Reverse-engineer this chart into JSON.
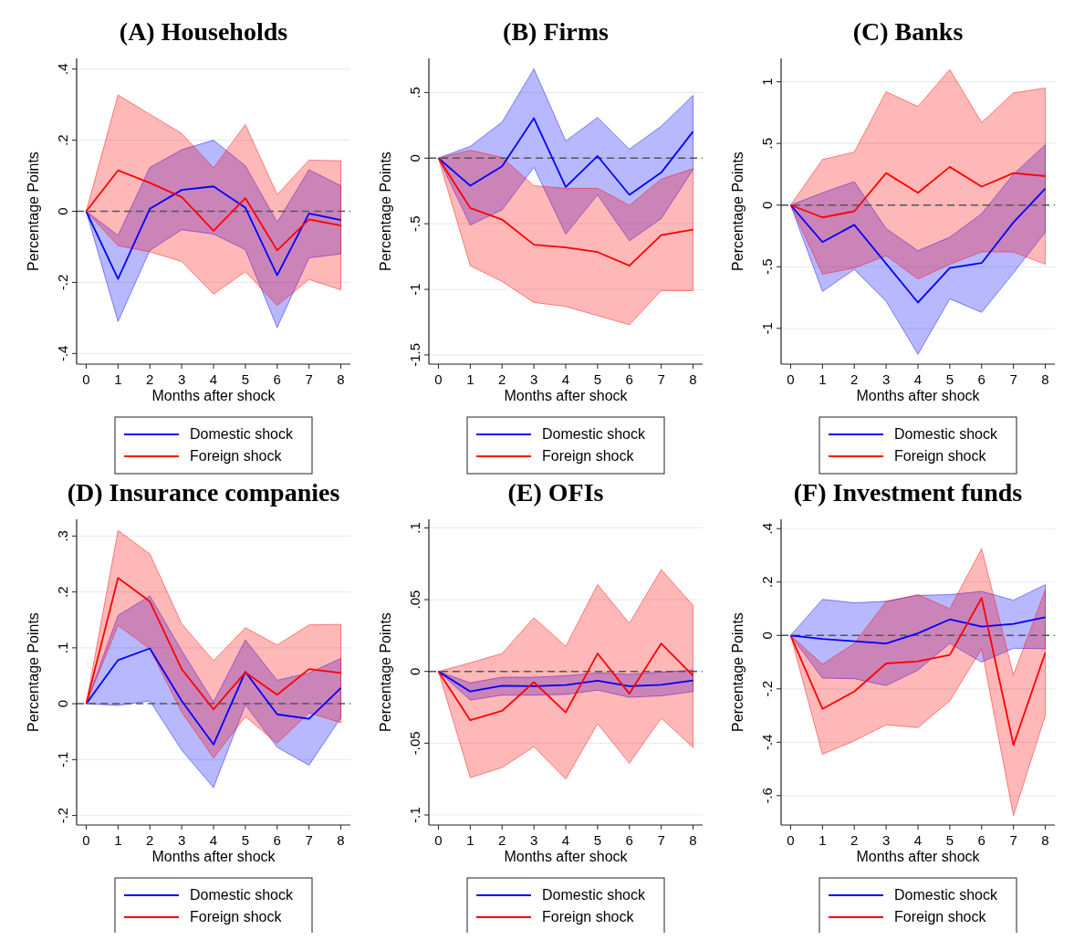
{
  "chart_data": [
    {
      "type": "line",
      "title": "(A) Households",
      "xlabel": "Months after shock",
      "ylabel": "Percentage Points",
      "x": [
        0,
        1,
        2,
        3,
        4,
        5,
        6,
        7,
        8
      ],
      "xlim": [
        -0.3,
        8.3
      ],
      "xticks": [
        0,
        1,
        2,
        3,
        4,
        5,
        6,
        7,
        8
      ],
      "ylim": [
        -0.43,
        0.43
      ],
      "yticks": [
        {
          "value": -0.4,
          "label": "-.4"
        },
        {
          "value": -0.2,
          "label": "-.2"
        },
        0,
        {
          "value": 0.2,
          "label": ".2"
        },
        {
          "value": 0.4,
          "label": ".4"
        }
      ],
      "grid": "y",
      "legend": "bottom",
      "line_style": "solid",
      "ref_lines": [
        {
          "axis": "y",
          "value": 0,
          "color": "#555555",
          "line_style": "dashed"
        }
      ],
      "series": [
        {
          "name": "Domestic shock",
          "color": "#0000ff",
          "values": [
            0,
            -0.19,
            0.007,
            0.06,
            0.07,
            0.01,
            -0.18,
            -0.006,
            -0.025
          ],
          "lower": [
            0,
            -0.31,
            -0.11,
            -0.052,
            -0.064,
            -0.108,
            -0.327,
            -0.131,
            -0.12
          ],
          "upper": [
            0,
            -0.068,
            0.123,
            0.173,
            0.2,
            0.128,
            -0.031,
            0.117,
            0.072
          ]
        },
        {
          "name": "Foreign shock",
          "color": "#ff0000",
          "values": [
            0,
            0.115,
            0.08,
            0.04,
            -0.055,
            0.037,
            -0.11,
            -0.023,
            -0.04
          ],
          "lower": [
            0,
            -0.097,
            -0.114,
            -0.141,
            -0.233,
            -0.17,
            -0.265,
            -0.192,
            -0.221
          ],
          "upper": [
            0,
            0.327,
            0.273,
            0.219,
            0.122,
            0.244,
            0.047,
            0.144,
            0.142
          ]
        }
      ]
    },
    {
      "type": "line",
      "title": "(B) Firms",
      "xlabel": "Months after shock",
      "ylabel": "Percentage Points",
      "x": [
        0,
        1,
        2,
        3,
        4,
        5,
        6,
        7,
        8
      ],
      "xlim": [
        -0.3,
        8.3
      ],
      "xticks": [
        0,
        1,
        2,
        3,
        4,
        5,
        6,
        7,
        8
      ],
      "ylim": [
        -1.57,
        0.76
      ],
      "yticks": [
        {
          "value": -1.5,
          "label": "-1.5"
        },
        -1,
        {
          "value": -0.5,
          "label": "-.5"
        },
        0,
        {
          "value": 0.5,
          "label": ".5"
        }
      ],
      "grid": "y",
      "legend": "bottom",
      "line_style": "solid",
      "ref_lines": [
        {
          "axis": "y",
          "value": 0,
          "color": "#555555",
          "line_style": "dashed"
        }
      ],
      "series": [
        {
          "name": "Domestic shock",
          "color": "#0000ff",
          "values": [
            0,
            -0.21,
            -0.063,
            0.304,
            -0.22,
            0.016,
            -0.28,
            -0.11,
            0.203
          ],
          "lower": [
            0,
            -0.51,
            -0.394,
            -0.07,
            -0.579,
            -0.28,
            -0.63,
            -0.46,
            -0.086
          ],
          "upper": [
            0,
            0.09,
            0.275,
            0.68,
            0.13,
            0.31,
            0.068,
            0.243,
            0.478
          ]
        },
        {
          "name": "Foreign shock",
          "color": "#ff0000",
          "values": [
            0,
            -0.38,
            -0.468,
            -0.66,
            -0.68,
            -0.716,
            -0.82,
            -0.586,
            -0.545
          ],
          "lower": [
            0,
            -0.82,
            -0.94,
            -1.1,
            -1.13,
            -1.2,
            -1.27,
            -1.01,
            -1.01
          ],
          "upper": [
            0,
            0.06,
            0.005,
            -0.21,
            -0.23,
            -0.23,
            -0.36,
            -0.16,
            -0.08
          ]
        }
      ]
    },
    {
      "type": "line",
      "title": "(C) Banks",
      "xlabel": "Months after shock",
      "ylabel": "Percentage Points",
      "x": [
        0,
        1,
        2,
        3,
        4,
        5,
        6,
        7,
        8
      ],
      "xlim": [
        -0.3,
        8.3
      ],
      "xticks": [
        0,
        1,
        2,
        3,
        4,
        5,
        6,
        7,
        8
      ],
      "ylim": [
        -1.29,
        1.19
      ],
      "yticks": [
        -1,
        {
          "value": -0.5,
          "label": "-.5"
        },
        0,
        {
          "value": 0.5,
          "label": ".5"
        },
        1
      ],
      "grid": "y",
      "legend": "bottom",
      "line_style": "solid",
      "ref_lines": [
        {
          "axis": "y",
          "value": 0,
          "color": "#555555",
          "line_style": "dashed"
        }
      ],
      "series": [
        {
          "name": "Domestic shock",
          "color": "#0000ff",
          "values": [
            0,
            -0.3,
            -0.16,
            -0.475,
            -0.79,
            -0.51,
            -0.47,
            -0.14,
            0.135
          ],
          "lower": [
            0,
            -0.7,
            -0.522,
            -0.78,
            -1.21,
            -0.76,
            -0.87,
            -0.55,
            -0.22
          ],
          "upper": [
            0,
            0.1,
            0.19,
            -0.19,
            -0.37,
            -0.26,
            -0.07,
            0.25,
            0.49
          ]
        },
        {
          "name": "Foreign shock",
          "color": "#ff0000",
          "values": [
            0,
            -0.1,
            -0.05,
            0.26,
            0.1,
            0.31,
            0.15,
            0.26,
            0.235
          ],
          "lower": [
            0,
            -0.56,
            -0.51,
            -0.41,
            -0.6,
            -0.48,
            -0.38,
            -0.38,
            -0.48
          ],
          "upper": [
            0,
            0.37,
            0.43,
            0.92,
            0.8,
            1.1,
            0.67,
            0.91,
            0.95
          ]
        }
      ]
    },
    {
      "type": "line",
      "title": "(D) Insurance companies",
      "xlabel": "Months after shock",
      "ylabel": "Percentage Points",
      "x": [
        0,
        1,
        2,
        3,
        4,
        5,
        6,
        7,
        8
      ],
      "xlim": [
        -0.3,
        8.3
      ],
      "xticks": [
        0,
        1,
        2,
        3,
        4,
        5,
        6,
        7,
        8
      ],
      "ylim": [
        -0.217,
        0.33
      ],
      "yticks": [
        {
          "value": -0.2,
          "label": "-.2"
        },
        {
          "value": -0.1,
          "label": "-.1"
        },
        0,
        {
          "value": 0.1,
          "label": ".1"
        },
        {
          "value": 0.2,
          "label": ".2"
        },
        {
          "value": 0.3,
          "label": ".3"
        }
      ],
      "grid": "y",
      "legend": "bottom",
      "line_style": "solid",
      "ref_lines": [
        {
          "axis": "y",
          "value": 0,
          "color": "#555555",
          "line_style": "dashed"
        }
      ],
      "series": [
        {
          "name": "Domestic shock",
          "color": "#0000ff",
          "values": [
            0,
            0.078,
            0.099,
            0.005,
            -0.073,
            0.057,
            -0.019,
            -0.027,
            0.028
          ],
          "lower": [
            0,
            -0.003,
            0.005,
            -0.083,
            -0.15,
            -0.002,
            -0.078,
            -0.11,
            -0.025
          ],
          "upper": [
            0,
            0.158,
            0.193,
            0.095,
            0.003,
            0.114,
            0.042,
            0.055,
            0.081
          ]
        },
        {
          "name": "Foreign shock",
          "color": "#ff0000",
          "values": [
            0,
            0.225,
            0.183,
            0.062,
            -0.01,
            0.056,
            0.016,
            0.062,
            0.055
          ],
          "lower": [
            0,
            0.14,
            0.098,
            -0.015,
            -0.097,
            -0.023,
            -0.071,
            -0.016,
            -0.034
          ],
          "upper": [
            0,
            0.31,
            0.268,
            0.143,
            0.077,
            0.136,
            0.105,
            0.141,
            0.142
          ]
        }
      ]
    },
    {
      "type": "line",
      "title": "(E) OFIs",
      "xlabel": "Months after shock",
      "ylabel": "Percentage Points",
      "x": [
        0,
        1,
        2,
        3,
        4,
        5,
        6,
        7,
        8
      ],
      "xlim": [
        -0.3,
        8.3
      ],
      "xticks": [
        0,
        1,
        2,
        3,
        4,
        5,
        6,
        7,
        8
      ],
      "ylim": [
        -0.107,
        0.106
      ],
      "yticks": [
        {
          "value": -0.1,
          "label": "-.1"
        },
        {
          "value": -0.05,
          "label": "-.05"
        },
        0,
        {
          "value": 0.05,
          "label": ".05"
        },
        {
          "value": 0.1,
          "label": ".1"
        }
      ],
      "grid": "y",
      "legend": "bottom",
      "line_style": "solid",
      "ref_lines": [
        {
          "axis": "y",
          "value": 0,
          "color": "#555555",
          "line_style": "dashed"
        }
      ],
      "series": [
        {
          "name": "Domestic shock",
          "color": "#0000ff",
          "values": [
            0,
            -0.014,
            -0.01,
            -0.0103,
            -0.0095,
            -0.0065,
            -0.0103,
            -0.0093,
            -0.0063
          ],
          "lower": [
            0,
            -0.02,
            -0.0165,
            -0.0165,
            -0.016,
            -0.013,
            -0.018,
            -0.017,
            -0.014
          ],
          "upper": [
            0,
            -0.008,
            -0.004,
            -0.004,
            -0.003,
            -0.001,
            -0.002,
            -0.0005,
            0.001
          ]
        },
        {
          "name": "Foreign shock",
          "color": "#ff0000",
          "values": [
            0,
            -0.034,
            -0.0275,
            -0.0075,
            -0.0285,
            0.0125,
            -0.0155,
            0.0195,
            -0.003
          ],
          "lower": [
            0,
            -0.074,
            -0.067,
            -0.0525,
            -0.075,
            -0.0365,
            -0.064,
            -0.0325,
            -0.053
          ],
          "upper": [
            0,
            0.006,
            0.0125,
            0.0375,
            0.0175,
            0.0605,
            0.0335,
            0.071,
            0.046
          ]
        }
      ]
    },
    {
      "type": "line",
      "title": "(F) Investment funds",
      "xlabel": "Months after shock",
      "ylabel": "Percentage Points",
      "x": [
        0,
        1,
        2,
        3,
        4,
        5,
        6,
        7,
        8
      ],
      "xlim": [
        -0.3,
        8.3
      ],
      "xticks": [
        0,
        1,
        2,
        3,
        4,
        5,
        6,
        7,
        8
      ],
      "ylim": [
        -0.71,
        0.435
      ],
      "yticks": [
        {
          "value": -0.6,
          "label": "-.6"
        },
        {
          "value": -0.4,
          "label": "-.4"
        },
        {
          "value": -0.2,
          "label": "-.2"
        },
        0,
        {
          "value": 0.2,
          "label": ".2"
        },
        {
          "value": 0.4,
          "label": ".4"
        }
      ],
      "grid": "y",
      "legend": "bottom",
      "line_style": "solid",
      "ref_lines": [
        {
          "axis": "y",
          "value": 0,
          "color": "#555555",
          "line_style": "dashed"
        }
      ],
      "series": [
        {
          "name": "Domestic shock",
          "color": "#0000ff",
          "values": [
            0,
            -0.013,
            -0.022,
            -0.03,
            0.008,
            0.06,
            0.033,
            0.043,
            0.068
          ],
          "lower": [
            0,
            -0.16,
            -0.162,
            -0.188,
            -0.13,
            -0.03,
            -0.1,
            -0.048,
            -0.05
          ],
          "upper": [
            0,
            0.135,
            0.122,
            0.128,
            0.15,
            0.153,
            0.165,
            0.132,
            0.19
          ]
        },
        {
          "name": "Foreign shock",
          "color": "#ff0000",
          "values": [
            0,
            -0.275,
            -0.21,
            -0.105,
            -0.097,
            -0.073,
            0.14,
            -0.41,
            -0.065
          ],
          "lower": [
            0,
            -0.445,
            -0.395,
            -0.335,
            -0.345,
            -0.245,
            -0.05,
            -0.675,
            -0.3
          ],
          "upper": [
            0,
            -0.108,
            -0.03,
            0.127,
            0.153,
            0.1,
            0.325,
            -0.148,
            0.17
          ]
        }
      ]
    }
  ]
}
